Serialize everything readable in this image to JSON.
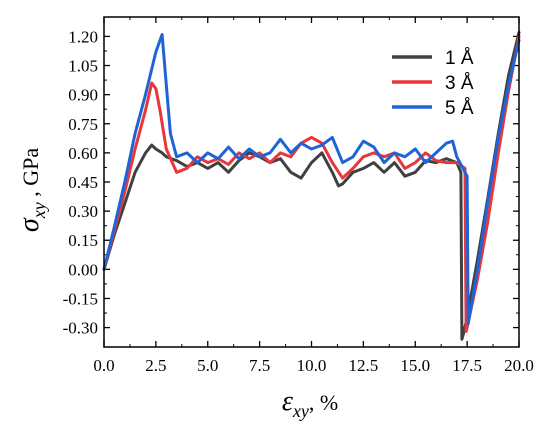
{
  "chart_data": {
    "type": "line",
    "xlabel": {
      "symbol": "ε",
      "subscript": "xy",
      "suffix": ", %"
    },
    "ylabel": {
      "symbol": "σ",
      "subscript": "xy",
      "suffix": " , GPa"
    },
    "xlim": [
      0,
      20
    ],
    "ylim": [
      -0.4,
      1.3
    ],
    "xticks": [
      "0.0",
      "2.5",
      "5.0",
      "7.5",
      "10.0",
      "12.5",
      "15.0",
      "17.5",
      "20.0"
    ],
    "yticks": [
      "-0.30",
      "-0.15",
      "0.00",
      "0.15",
      "0.30",
      "0.45",
      "0.60",
      "0.75",
      "0.90",
      "1.05",
      "1.20"
    ],
    "grid": false,
    "legend_position": "top-right",
    "series": [
      {
        "name": "1 Å",
        "color": "#404040",
        "x": [
          0.0,
          0.5,
          1.0,
          1.5,
          2.0,
          2.3,
          2.5,
          2.8,
          3.0,
          3.5,
          4.0,
          4.5,
          5.0,
          5.5,
          6.0,
          6.5,
          7.0,
          7.5,
          8.0,
          8.5,
          9.0,
          9.5,
          10.0,
          10.5,
          11.0,
          11.3,
          11.5,
          12.0,
          12.5,
          13.0,
          13.5,
          14.0,
          14.5,
          15.0,
          15.5,
          16.0,
          16.5,
          17.0,
          17.2,
          17.25,
          17.3,
          17.5,
          18.0,
          18.5,
          19.0,
          19.5,
          20.0
        ],
        "y": [
          0.0,
          0.18,
          0.34,
          0.5,
          0.6,
          0.64,
          0.62,
          0.6,
          0.58,
          0.56,
          0.53,
          0.55,
          0.52,
          0.55,
          0.5,
          0.56,
          0.6,
          0.58,
          0.55,
          0.57,
          0.5,
          0.47,
          0.55,
          0.6,
          0.5,
          0.43,
          0.44,
          0.5,
          0.52,
          0.55,
          0.5,
          0.55,
          0.48,
          0.5,
          0.56,
          0.55,
          0.57,
          0.55,
          0.5,
          -0.36,
          -0.34,
          -0.25,
          0.05,
          0.37,
          0.7,
          1.0,
          1.22
        ]
      },
      {
        "name": "3 Å",
        "color": "#e8373c",
        "x": [
          0.0,
          0.5,
          1.0,
          1.5,
          2.0,
          2.3,
          2.5,
          2.7,
          3.0,
          3.5,
          4.0,
          4.5,
          5.0,
          5.5,
          6.0,
          6.5,
          7.0,
          7.5,
          8.0,
          8.5,
          9.0,
          9.5,
          10.0,
          10.5,
          11.0,
          11.5,
          12.0,
          12.5,
          13.0,
          13.5,
          14.0,
          14.5,
          15.0,
          15.5,
          16.0,
          16.5,
          17.0,
          17.4,
          17.45,
          17.5,
          18.0,
          18.5,
          19.0,
          19.5,
          20.0
        ],
        "y": [
          0.0,
          0.2,
          0.4,
          0.62,
          0.82,
          0.96,
          0.93,
          0.82,
          0.62,
          0.5,
          0.52,
          0.58,
          0.55,
          0.57,
          0.54,
          0.6,
          0.57,
          0.6,
          0.55,
          0.6,
          0.58,
          0.65,
          0.68,
          0.65,
          0.55,
          0.47,
          0.52,
          0.58,
          0.6,
          0.58,
          0.6,
          0.52,
          0.55,
          0.6,
          0.56,
          0.55,
          0.55,
          0.52,
          -0.32,
          -0.3,
          -0.05,
          0.25,
          0.6,
          0.92,
          1.2
        ]
      },
      {
        "name": "5 Å",
        "color": "#1f64d6",
        "x": [
          0.0,
          0.5,
          1.0,
          1.5,
          2.0,
          2.5,
          2.8,
          3.0,
          3.2,
          3.5,
          4.0,
          4.5,
          5.0,
          5.5,
          6.0,
          6.5,
          7.0,
          7.5,
          8.0,
          8.5,
          9.0,
          9.5,
          10.0,
          10.5,
          11.0,
          11.5,
          12.0,
          12.5,
          13.0,
          13.5,
          14.0,
          14.5,
          15.0,
          15.5,
          16.0,
          16.5,
          16.8,
          17.0,
          17.3,
          17.5,
          17.55,
          17.6,
          18.0,
          18.5,
          19.0,
          19.5,
          20.0
        ],
        "y": [
          0.0,
          0.22,
          0.45,
          0.7,
          0.9,
          1.12,
          1.21,
          0.95,
          0.7,
          0.58,
          0.6,
          0.55,
          0.6,
          0.57,
          0.63,
          0.57,
          0.62,
          0.58,
          0.6,
          0.67,
          0.6,
          0.65,
          0.62,
          0.64,
          0.68,
          0.55,
          0.58,
          0.66,
          0.63,
          0.55,
          0.6,
          0.58,
          0.62,
          0.55,
          0.6,
          0.65,
          0.66,
          0.58,
          0.52,
          0.48,
          -0.28,
          -0.25,
          0.0,
          0.35,
          0.68,
          0.95,
          1.18
        ]
      }
    ]
  }
}
